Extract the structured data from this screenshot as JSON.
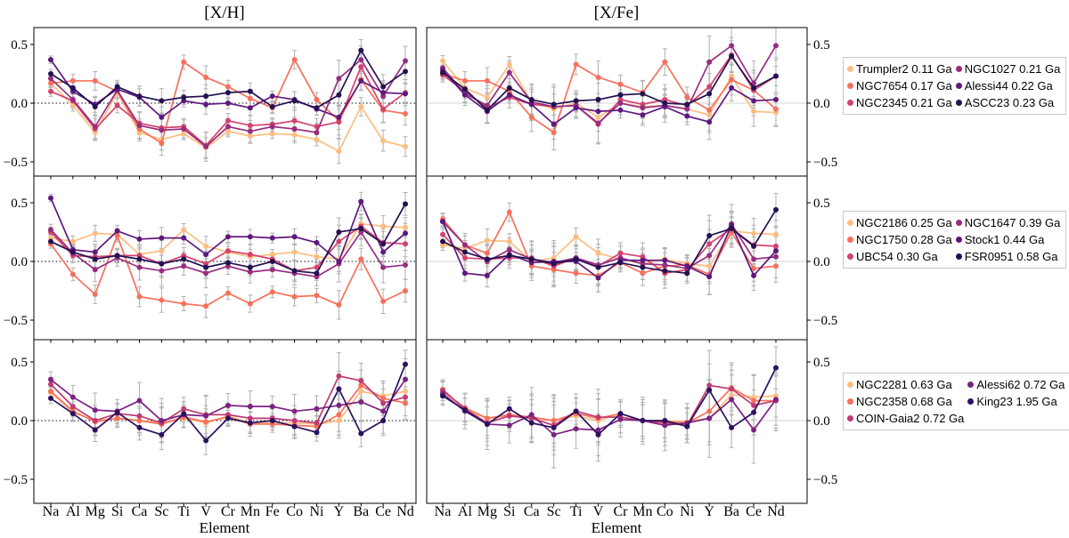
{
  "figure": {
    "left_title": "[X/H]",
    "right_title": "[X/Fe]",
    "xlabel": "Element",
    "age_unit": "Ga"
  },
  "chart_data": {
    "type": "line",
    "titles": [
      "[X/H]",
      "[X/Fe]"
    ],
    "xlabel": "Element",
    "elements_xh": [
      "Na",
      "Al",
      "Mg",
      "Si",
      "Ca",
      "Sc",
      "Ti",
      "V",
      "Cr",
      "Mn",
      "Fe",
      "Co",
      "Ni",
      "Y",
      "Ba",
      "Ce",
      "Nd"
    ],
    "elements_xfe": [
      "Na",
      "Al",
      "Mg",
      "Si",
      "Ca",
      "Sc",
      "Ti",
      "V",
      "Cr",
      "Mn",
      "Co",
      "Ni",
      "Y",
      "Ba",
      "Ce",
      "Nd"
    ],
    "ylim": [
      -0.65,
      0.66
    ],
    "ytick_values": [
      0.5,
      0.0,
      -0.5
    ],
    "ytick_labels": [
      "0.5",
      "0.0",
      "−0.5"
    ],
    "grid": "zero-line-only",
    "zero_line_left_panels": "black-dotted",
    "zero_line_right_panels": "light-gray-solid",
    "error_bar_color": "#b0b0b0",
    "err_scale": [
      0.6,
      0.9,
      1.3,
      0.9,
      1.4,
      1.7,
      1.0,
      1.6,
      0.9,
      1.2,
      0.8,
      1.3,
      1.0,
      2.0,
      1.5,
      1.7,
      1.6
    ],
    "err_scale_xfe": [
      0.6,
      0.9,
      1.3,
      0.9,
      1.4,
      1.7,
      1.0,
      1.6,
      0.9,
      1.2,
      1.3,
      1.0,
      2.0,
      1.5,
      1.7,
      1.6
    ],
    "err_base_xh": [
      0.07,
      0.07,
      0.1
    ],
    "err_base_xfe": [
      0.1,
      0.1,
      0.15
    ],
    "legend_position": "right-of-figure",
    "rows": [
      {
        "clusters": [
          {
            "name": "Trumpler2",
            "age": "0.11 Ga",
            "color": "#fdbd7f",
            "xh": [
              0.17,
              -0.02,
              -0.25,
              0.09,
              -0.25,
              -0.31,
              -0.26,
              -0.38,
              -0.24,
              -0.28,
              -0.26,
              -0.27,
              -0.31,
              -0.41,
              -0.03,
              -0.32,
              -0.37
            ],
            "xfe": [
              0.36,
              0.13,
              0.05,
              0.33,
              0.01,
              -0.05,
              0.0,
              -0.12,
              0.0,
              -0.03,
              -0.02,
              -0.05,
              -0.1,
              0.23,
              -0.07,
              -0.08
            ]
          },
          {
            "name": "NGC7654",
            "age": "0.17 Ga",
            "color": "#f7705c",
            "xh": [
              0.17,
              0.19,
              0.19,
              0.1,
              -0.22,
              -0.34,
              0.35,
              0.22,
              0.14,
              0.04,
              -0.04,
              0.37,
              0.03,
              -0.15,
              0.2,
              -0.06,
              -0.09
            ],
            "xfe": [
              0.25,
              0.19,
              0.19,
              0.1,
              -0.12,
              -0.25,
              0.33,
              0.22,
              0.16,
              0.09,
              0.35,
              0.05,
              -0.06,
              0.2,
              0.11,
              -0.05
            ]
          },
          {
            "name": "NGC2345",
            "age": "0.21 Ga",
            "color": "#d3436e",
            "xh": [
              0.1,
              0.02,
              -0.22,
              -0.02,
              -0.17,
              -0.21,
              -0.2,
              -0.36,
              -0.15,
              -0.19,
              -0.18,
              -0.15,
              -0.2,
              -0.16,
              0.31,
              -0.05,
              0.09
            ],
            "xfe": [
              0.24,
              0.1,
              -0.04,
              0.05,
              -0.01,
              -0.03,
              -0.02,
              -0.18,
              0.03,
              -0.01,
              0.03,
              -0.02,
              0.14,
              0.41,
              0.11,
              0.23
            ]
          },
          {
            "name": "NGC1027",
            "age": "0.21 Ga",
            "color": "#982d80",
            "xh": [
              0.21,
              0.03,
              -0.2,
              0.11,
              -0.19,
              -0.23,
              -0.22,
              -0.37,
              -0.2,
              -0.24,
              -0.2,
              -0.22,
              -0.25,
              0.21,
              0.37,
              0.06,
              0.36
            ],
            "xfe": [
              0.3,
              0.08,
              -0.02,
              0.26,
              0.01,
              -0.03,
              -0.02,
              -0.17,
              0.0,
              -0.04,
              -0.02,
              -0.05,
              0.35,
              0.49,
              0.17,
              0.49
            ]
          },
          {
            "name": "Alessi44",
            "age": "0.22 Ga",
            "color": "#5f187f",
            "xh": [
              0.37,
              0.1,
              -0.01,
              0.12,
              0.05,
              -0.12,
              0.02,
              -0.01,
              0.0,
              -0.04,
              0.06,
              0.03,
              -0.05,
              -0.12,
              0.19,
              0.09,
              0.08
            ],
            "xfe": [
              0.28,
              0.07,
              -0.07,
              0.07,
              -0.01,
              -0.18,
              -0.04,
              -0.07,
              -0.06,
              -0.1,
              -0.03,
              -0.11,
              -0.16,
              0.13,
              0.02,
              0.03
            ]
          },
          {
            "name": "ASCC23",
            "age": "0.23 Ga",
            "color": "#231151",
            "xh": [
              0.25,
              0.13,
              -0.03,
              0.14,
              0.06,
              0.02,
              0.05,
              0.06,
              0.09,
              0.1,
              -0.03,
              0.02,
              -0.04,
              0.07,
              0.45,
              0.14,
              0.27
            ],
            "xfe": [
              0.26,
              0.12,
              -0.06,
              0.13,
              0.03,
              -0.01,
              0.02,
              0.03,
              0.07,
              0.08,
              0.0,
              -0.01,
              0.08,
              0.4,
              0.13,
              0.23
            ]
          }
        ]
      },
      {
        "clusters": [
          {
            "name": "NGC2186",
            "age": "0.25 Ga",
            "color": "#fdbd7f",
            "xh": [
              0.2,
              0.17,
              0.24,
              0.23,
              0.06,
              0.09,
              0.27,
              0.13,
              0.08,
              0.04,
              0.06,
              0.08,
              0.04,
              0.02,
              0.32,
              0.3,
              0.29
            ],
            "xfe": [
              0.14,
              0.11,
              0.18,
              0.17,
              0.0,
              0.03,
              0.21,
              0.07,
              0.02,
              -0.02,
              0.02,
              -0.02,
              -0.04,
              0.26,
              0.24,
              0.23
            ]
          },
          {
            "name": "NGC1750",
            "age": "0.28 Ga",
            "color": "#f7705c",
            "xh": [
              0.15,
              -0.11,
              -0.28,
              0.22,
              -0.3,
              -0.33,
              -0.36,
              -0.38,
              -0.27,
              -0.36,
              -0.26,
              -0.3,
              -0.29,
              -0.37,
              0.02,
              -0.34,
              -0.25
            ],
            "xfe": [
              0.36,
              0.14,
              0.07,
              0.42,
              -0.04,
              -0.07,
              -0.1,
              -0.12,
              -0.01,
              -0.1,
              -0.04,
              -0.03,
              -0.11,
              0.25,
              -0.06,
              -0.04
            ]
          },
          {
            "name": "UBC54",
            "age": "0.30 Ga",
            "color": "#d3436e",
            "xh": [
              0.25,
              0.05,
              0.04,
              0.05,
              0.05,
              -0.02,
              0.05,
              -0.02,
              0.09,
              0.06,
              0.02,
              -0.08,
              -0.05,
              0.17,
              0.3,
              0.16,
              0.15
            ],
            "xfe": [
              0.23,
              0.03,
              0.02,
              0.03,
              0.03,
              -0.04,
              0.03,
              -0.04,
              0.07,
              0.04,
              -0.1,
              -0.07,
              0.15,
              0.28,
              0.14,
              0.13
            ]
          },
          {
            "name": "NGC1647",
            "age": "0.39 Ga",
            "color": "#982d80",
            "xh": [
              0.27,
              0.07,
              -0.07,
              0.03,
              -0.05,
              -0.08,
              -0.04,
              -0.1,
              -0.04,
              -0.09,
              -0.07,
              -0.1,
              -0.13,
              -0.02,
              0.25,
              -0.05,
              -0.03
            ],
            "xfe": [
              0.34,
              0.14,
              0.0,
              0.1,
              0.02,
              -0.01,
              0.03,
              -0.03,
              0.03,
              -0.02,
              -0.03,
              -0.06,
              0.05,
              0.32,
              0.02,
              0.04
            ]
          },
          {
            "name": "Stock1",
            "age": "0.44 Ga",
            "color": "#5f187f",
            "xh": [
              0.54,
              0.1,
              0.08,
              0.26,
              0.19,
              0.2,
              0.2,
              0.06,
              0.21,
              0.21,
              0.2,
              0.21,
              0.16,
              0.0,
              0.51,
              0.08,
              0.24
            ],
            "xfe": [
              0.34,
              -0.1,
              -0.12,
              0.06,
              -0.01,
              0.0,
              0.0,
              -0.14,
              0.01,
              0.01,
              0.01,
              -0.04,
              -0.13,
              0.31,
              -0.12,
              0.09
            ]
          },
          {
            "name": "FSR0951",
            "age": "0.58 Ga",
            "color": "#231151",
            "xh": [
              0.17,
              0.08,
              0.02,
              0.05,
              0.02,
              -0.02,
              0.02,
              -0.05,
              -0.01,
              -0.05,
              0.0,
              -0.08,
              -0.1,
              0.25,
              0.28,
              0.15,
              0.49
            ],
            "xfe": [
              0.17,
              0.08,
              0.02,
              0.05,
              0.02,
              -0.02,
              0.02,
              -0.05,
              -0.01,
              -0.05,
              -0.08,
              -0.1,
              0.22,
              0.28,
              0.13,
              0.44
            ]
          }
        ]
      },
      {
        "clusters": [
          {
            "name": "NGC2281",
            "age": "0.63 Ga",
            "color": "#fdbd7f",
            "xh": [
              0.24,
              0.07,
              0.0,
              0.02,
              0.0,
              -0.02,
              0.02,
              -0.02,
              0.04,
              -0.02,
              -0.02,
              -0.02,
              -0.03,
              0.0,
              0.25,
              0.21,
              0.25
            ],
            "xfe": [
              0.27,
              0.09,
              0.02,
              0.04,
              0.02,
              0.0,
              0.04,
              0.0,
              0.06,
              0.0,
              0.0,
              -0.01,
              0.02,
              0.22,
              0.2,
              0.21
            ]
          },
          {
            "name": "NGC2358",
            "age": "0.68 Ga",
            "color": "#f7705c",
            "xh": [
              0.25,
              0.08,
              -0.01,
              0.02,
              0.0,
              -0.03,
              0.03,
              -0.01,
              0.03,
              -0.03,
              -0.03,
              -0.04,
              -0.05,
              0.05,
              0.3,
              0.19,
              0.15
            ],
            "xfe": [
              0.25,
              0.11,
              0.02,
              0.05,
              0.03,
              0.0,
              0.06,
              0.02,
              0.06,
              0.0,
              -0.01,
              -0.02,
              0.08,
              0.28,
              0.17,
              0.17
            ]
          },
          {
            "name": "COIN-Gaia2",
            "age": "0.72 Ga",
            "color": "#c13a73",
            "xh": [
              0.31,
              0.12,
              0.0,
              0.06,
              0.04,
              -0.02,
              0.1,
              0.05,
              0.05,
              0.02,
              0.02,
              0.0,
              -0.02,
              0.38,
              0.34,
              0.15,
              0.2
            ],
            "xfe": [
              0.26,
              0.1,
              -0.02,
              0.04,
              0.02,
              -0.04,
              0.08,
              0.03,
              0.03,
              0.0,
              -0.02,
              -0.04,
              0.3,
              0.27,
              0.13,
              0.17
            ]
          },
          {
            "name": "Alessi62",
            "age": "0.72 Ga",
            "color": "#7b2382",
            "xh": [
              0.35,
              0.2,
              0.09,
              0.08,
              0.17,
              0.0,
              0.05,
              0.04,
              0.13,
              0.12,
              0.12,
              0.08,
              0.1,
              0.13,
              0.16,
              0.08,
              0.35
            ],
            "xfe": [
              0.23,
              0.08,
              -0.03,
              -0.04,
              0.05,
              -0.12,
              -0.07,
              -0.08,
              0.01,
              0.0,
              -0.04,
              -0.02,
              0.02,
              0.18,
              -0.08,
              0.18
            ]
          },
          {
            "name": "King23",
            "age": "1.95 Ga",
            "color": "#2c1160",
            "xh": [
              0.19,
              0.06,
              -0.08,
              0.07,
              -0.06,
              -0.12,
              0.06,
              -0.17,
              0.02,
              -0.02,
              0.0,
              -0.05,
              -0.1,
              0.27,
              -0.11,
              0.0,
              0.48
            ],
            "xfe": [
              0.21,
              0.09,
              -0.03,
              0.1,
              -0.02,
              -0.06,
              0.08,
              -0.12,
              0.06,
              0.0,
              0.0,
              -0.05,
              0.26,
              -0.06,
              0.07,
              0.45
            ]
          }
        ]
      }
    ]
  }
}
